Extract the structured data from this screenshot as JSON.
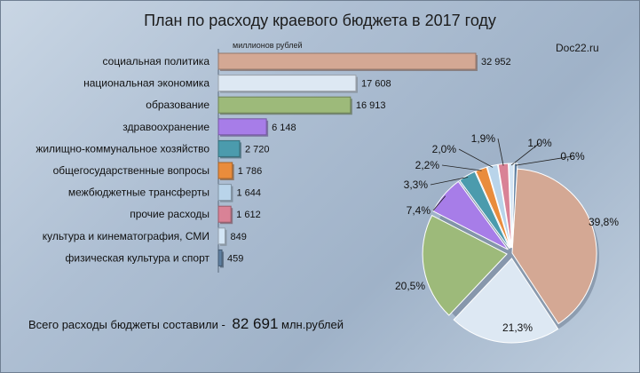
{
  "header": {
    "title": "План по расходу краевого бюджета в 2017 году",
    "units": "миллионов рублей",
    "source": "Doc22.ru"
  },
  "footer": {
    "total_prefix": "Всего расходы бюджеты составили -",
    "total_value": "82 691",
    "total_suffix": "млн.рублей"
  },
  "chart_data": [
    {
      "type": "bar",
      "orientation": "horizontal",
      "title": "План по расходу краевого бюджета в 2017 году",
      "xlabel": "миллионов рублей",
      "categories": [
        "социальная политика",
        "национальная экономика",
        "образование",
        "здравоохранение",
        "жилищно-коммунальное хозяйство",
        "общегосударственные вопросы",
        "межбюджетные трансферты",
        "прочие расходы",
        "культура и кинематография, СМИ",
        "физическая культура и спорт"
      ],
      "values": [
        32952,
        17608,
        16913,
        6148,
        2720,
        1786,
        1644,
        1612,
        849,
        459
      ],
      "value_labels": [
        "32 952",
        "17 608",
        "16 913",
        "6 148",
        "2 720",
        "1 786",
        "1 644",
        "1 612",
        "849",
        "459"
      ],
      "colors": [
        "#d4a894",
        "#dde8f3",
        "#9dba7a",
        "#a77de8",
        "#4b9bad",
        "#e98c3c",
        "#b9d4ea",
        "#d98296",
        "#d3e5f5",
        "#5f7fa0"
      ]
    },
    {
      "type": "pie",
      "slices": [
        {
          "value": 39.8,
          "label": "39,8%",
          "color": "#d4a894"
        },
        {
          "value": 21.3,
          "label": "21,3%",
          "color": "#dde8f3"
        },
        {
          "value": 20.5,
          "label": "20,5%",
          "color": "#9dba7a"
        },
        {
          "value": 7.4,
          "label": "7,4%",
          "color": "#a77de8"
        },
        {
          "value": 3.3,
          "label": "3,3%",
          "color": "#4b9bad"
        },
        {
          "value": 2.2,
          "label": "2,2%",
          "color": "#e98c3c"
        },
        {
          "value": 2.0,
          "label": "2,0%",
          "color": "#b9d4ea"
        },
        {
          "value": 1.9,
          "label": "1,9%",
          "color": "#d98296"
        },
        {
          "value": 1.0,
          "label": "1,0%",
          "color": "#d3e5f5"
        },
        {
          "value": 0.6,
          "label": "0,6%",
          "color": "#5f7fa0"
        }
      ]
    }
  ]
}
